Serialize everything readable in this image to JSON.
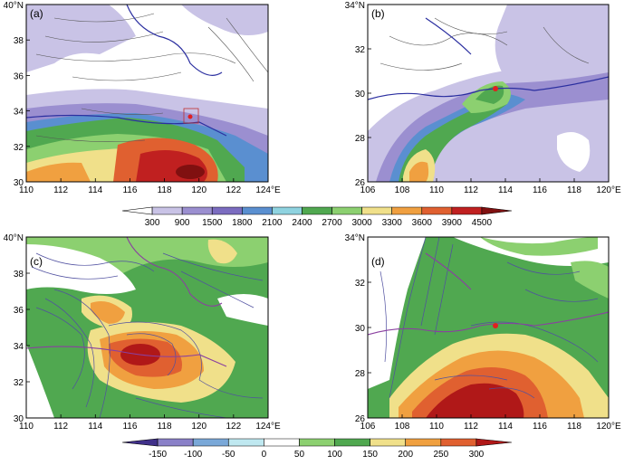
{
  "panels": [
    {
      "id": "a",
      "label": "(a)",
      "x_ticks": [
        "110",
        "112",
        "114",
        "116",
        "118",
        "120",
        "122",
        "124°E"
      ],
      "y_ticks": [
        "30",
        "32",
        "34",
        "36",
        "38",
        "40°N"
      ]
    },
    {
      "id": "b",
      "label": "(b)",
      "x_ticks": [
        "106",
        "108",
        "110",
        "112",
        "114",
        "116",
        "118",
        "120°E"
      ],
      "y_ticks": [
        "26",
        "28",
        "30",
        "32",
        "34°N"
      ]
    },
    {
      "id": "c",
      "label": "(c)",
      "x_ticks": [
        "110",
        "112",
        "114",
        "116",
        "118",
        "120",
        "122",
        "124°E"
      ],
      "y_ticks": [
        "30",
        "32",
        "34",
        "36",
        "38",
        "40°N"
      ]
    },
    {
      "id": "d",
      "label": "(d)",
      "x_ticks": [
        "106",
        "108",
        "110",
        "112",
        "114",
        "116",
        "118",
        "120°E"
      ],
      "y_ticks": [
        "26",
        "28",
        "30",
        "32",
        "34°N"
      ]
    }
  ],
  "colorbar_top": {
    "ticks": [
      "300",
      "900",
      "1500",
      "1800",
      "2100",
      "2400",
      "2700",
      "3000",
      "3300",
      "3600",
      "3900",
      "4500"
    ],
    "colors": [
      "#ffffff",
      "#c9c3e6",
      "#9b8fd0",
      "#7b6cc0",
      "#5a8fd0",
      "#8fd3e0",
      "#50a850",
      "#8cd070",
      "#f0e08a",
      "#f0a040",
      "#e06030",
      "#c02020",
      "#801010"
    ]
  },
  "colorbar_bottom": {
    "ticks": [
      "-150",
      "-100",
      "-50",
      "0",
      "50",
      "100",
      "150",
      "200",
      "250",
      "300"
    ],
    "colors": [
      "#40308a",
      "#8a80c8",
      "#7aa8d8",
      "#bfe8f0",
      "#ffffff",
      "#8cd070",
      "#50a850",
      "#f0e08a",
      "#f0a040",
      "#e06030",
      "#b01818"
    ]
  }
}
